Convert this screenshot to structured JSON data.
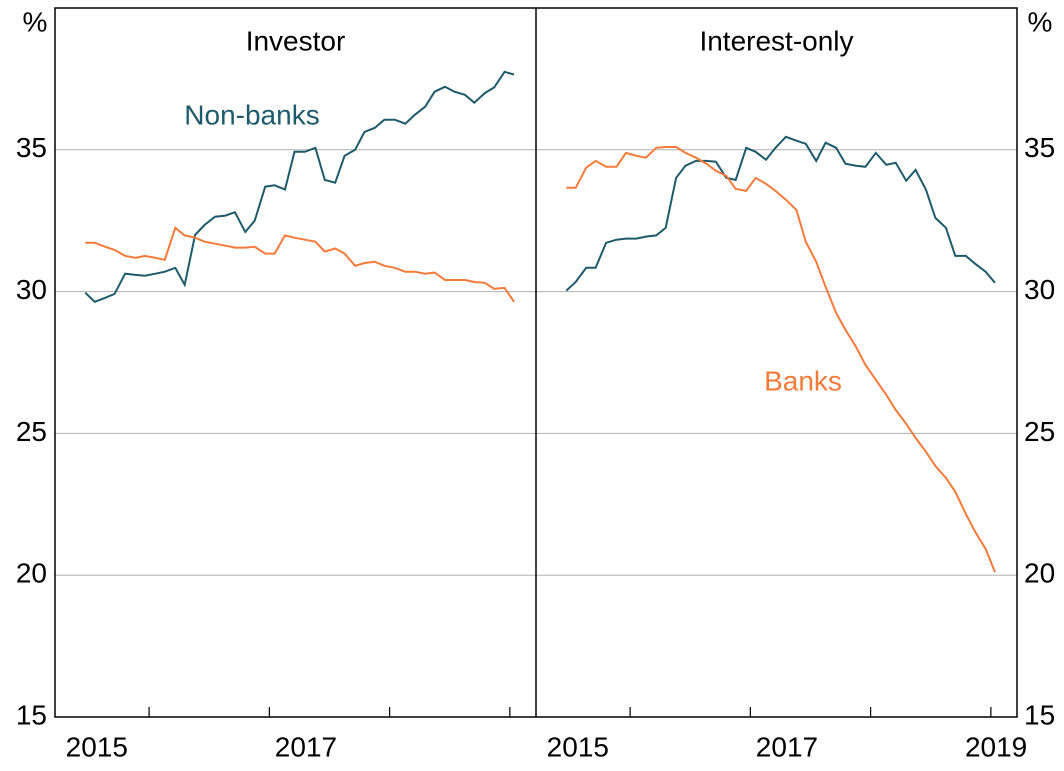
{
  "chart_data": [
    {
      "type": "line",
      "title": "Investor",
      "ylabel": "%",
      "x": [
        2014.89,
        2014.98,
        2015.08,
        2015.17,
        2015.27,
        2015.37,
        2015.46,
        2015.56,
        2015.65,
        2015.75,
        2015.84,
        2015.94,
        2016.03,
        2016.13,
        2016.23,
        2016.32,
        2016.42,
        2016.51,
        2016.61,
        2016.7,
        2016.8,
        2016.89,
        2016.99,
        2017.09,
        2017.18,
        2017.28,
        2017.37,
        2017.47,
        2017.56,
        2017.66,
        2017.75,
        2017.85,
        2017.95,
        2018.04,
        2018.14,
        2018.23,
        2018.33,
        2018.42,
        2018.52,
        2018.61,
        2018.71,
        2018.8,
        2018.9,
        2018.99
      ],
      "xlim": [
        2014.6,
        2019.2
      ],
      "xticks": [
        2015,
        2017
      ],
      "xminor": [
        2015.5,
        2016.65,
        2017.8,
        2018.95
      ],
      "ylim": [
        15,
        40
      ],
      "yticks": [
        15,
        20,
        25,
        30,
        35
      ],
      "grid": true,
      "series": [
        {
          "name": "Non-banks",
          "color": "#1f5a6b",
          "values": [
            29.96,
            29.64,
            29.78,
            29.92,
            30.63,
            30.59,
            30.56,
            30.63,
            30.7,
            30.84,
            30.24,
            32.0,
            32.35,
            32.64,
            32.68,
            32.8,
            32.1,
            32.5,
            33.7,
            33.75,
            33.6,
            34.93,
            34.93,
            35.07,
            33.94,
            33.84,
            34.79,
            35.0,
            35.63,
            35.78,
            36.06,
            36.06,
            35.92,
            36.23,
            36.52,
            37.05,
            37.22,
            37.05,
            36.94,
            36.66,
            37.0,
            37.2,
            37.75,
            37.65
          ]
        },
        {
          "color": "#f47b3a",
          "values": [
            31.72,
            31.72,
            31.58,
            31.47,
            31.26,
            31.19,
            31.26,
            31.19,
            31.12,
            32.25,
            31.98,
            31.9,
            31.76,
            31.69,
            31.62,
            31.55,
            31.55,
            31.58,
            31.34,
            31.34,
            31.98,
            31.9,
            31.83,
            31.76,
            31.41,
            31.52,
            31.34,
            30.91,
            31.01,
            31.05,
            30.91,
            30.84,
            30.7,
            30.7,
            30.63,
            30.67,
            30.41,
            30.41,
            30.41,
            30.34,
            30.31,
            30.1,
            30.13,
            29.64
          ]
        }
      ]
    },
    {
      "type": "line",
      "title": "Interest-only",
      "ylabel": "%",
      "x": [
        2014.89,
        2014.98,
        2015.08,
        2015.17,
        2015.27,
        2015.37,
        2015.46,
        2015.56,
        2015.65,
        2015.75,
        2015.84,
        2015.94,
        2016.03,
        2016.13,
        2016.23,
        2016.32,
        2016.42,
        2016.51,
        2016.61,
        2016.7,
        2016.8,
        2016.89,
        2016.99,
        2017.09,
        2017.18,
        2017.28,
        2017.37,
        2017.47,
        2017.56,
        2017.66,
        2017.75,
        2017.85,
        2017.95,
        2018.04,
        2018.14,
        2018.23,
        2018.33,
        2018.42,
        2018.52,
        2018.61,
        2018.71,
        2018.8,
        2018.9,
        2018.99
      ],
      "xlim": [
        2014.6,
        2019.2
      ],
      "xticks": [
        2015,
        2017,
        2019
      ],
      "xminor": [
        2015.5,
        2016.65,
        2017.8,
        2018.95
      ],
      "ylim": [
        15,
        40
      ],
      "yticks": [
        15,
        20,
        25,
        30,
        35
      ],
      "grid": true,
      "series": [
        {
          "color": "#1f5a6b",
          "values": [
            30.03,
            30.34,
            30.84,
            30.84,
            31.72,
            31.83,
            31.87,
            31.87,
            31.94,
            31.98,
            32.25,
            34.01,
            34.44,
            34.61,
            34.61,
            34.58,
            34.01,
            33.94,
            35.07,
            34.93,
            34.65,
            35.07,
            35.46,
            35.32,
            35.21,
            34.61,
            35.25,
            35.07,
            34.51,
            34.44,
            34.4,
            34.89,
            34.47,
            34.54,
            33.91,
            34.29,
            33.59,
            32.6,
            32.25,
            31.26,
            31.26,
            30.98,
            30.7,
            30.31
          ]
        },
        {
          "name": "Banks",
          "color": "#f47b3a",
          "values": [
            33.66,
            33.66,
            34.37,
            34.61,
            34.4,
            34.4,
            34.89,
            34.79,
            34.72,
            35.07,
            35.1,
            35.1,
            34.89,
            34.72,
            34.51,
            34.26,
            34.08,
            33.62,
            33.55,
            34.01,
            33.8,
            33.55,
            33.24,
            32.88,
            31.76,
            31.05,
            30.17,
            29.25,
            28.65,
            28.05,
            27.42,
            26.89,
            26.36,
            25.83,
            25.34,
            24.84,
            24.35,
            23.85,
            23.43,
            22.94,
            22.16,
            21.53,
            20.93,
            20.11
          ]
        }
      ]
    }
  ]
}
